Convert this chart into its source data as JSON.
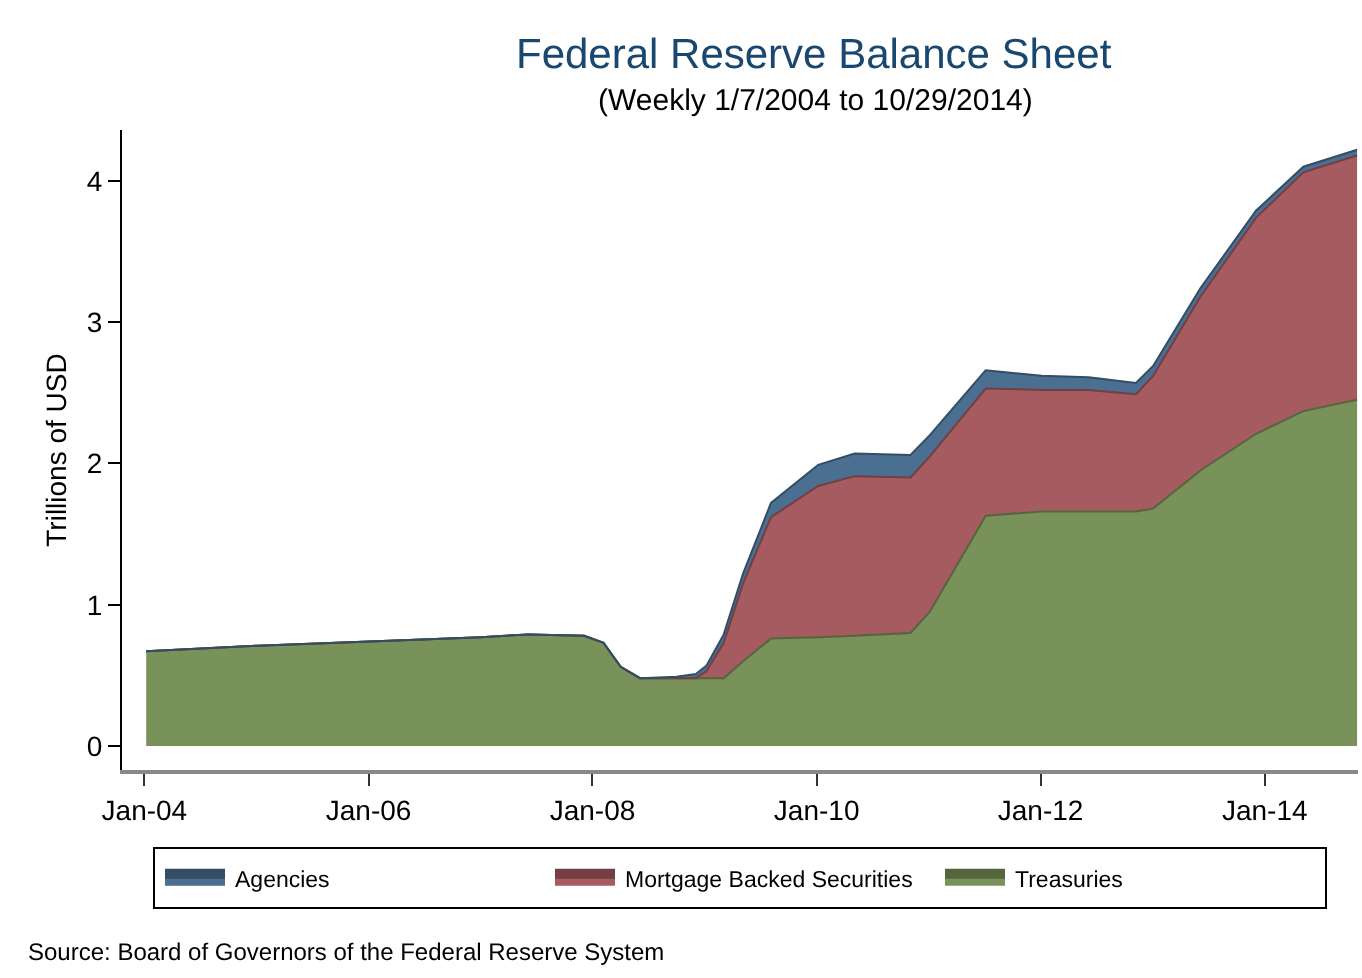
{
  "chart_data": {
    "type": "area",
    "stacked": true,
    "title": "Federal Reserve Balance Sheet",
    "subtitle": "(Weekly 1/7/2004 to 10/29/2014)",
    "ylabel": "Trillions of USD",
    "x": [
      "2004-01-07",
      "2005-01-05",
      "2006-01-04",
      "2007-01-03",
      "2007-06-06",
      "2007-12-05",
      "2008-02-06",
      "2008-04-02",
      "2008-06-04",
      "2008-10-01",
      "2008-12-03",
      "2009-01-07",
      "2009-03-04",
      "2009-05-06",
      "2009-08-05",
      "2010-01-06",
      "2010-05-05",
      "2010-11-03",
      "2011-01-05",
      "2011-07-06",
      "2012-01-04",
      "2012-06-06",
      "2012-11-07",
      "2013-01-02",
      "2013-06-05",
      "2013-12-04",
      "2014-05-07",
      "2014-10-29"
    ],
    "series": [
      {
        "name": "Treasuries",
        "color": "#78925a",
        "values": [
          0.67,
          0.71,
          0.74,
          0.77,
          0.79,
          0.78,
          0.73,
          0.56,
          0.48,
          0.48,
          0.48,
          0.48,
          0.48,
          0.6,
          0.76,
          0.77,
          0.78,
          0.8,
          0.95,
          1.63,
          1.66,
          1.66,
          1.66,
          1.68,
          1.95,
          2.21,
          2.37,
          2.45
        ]
      },
      {
        "name": "Mortgage Backed Securities",
        "color": "#a55b5f",
        "values": [
          0,
          0,
          0,
          0,
          0,
          0,
          0,
          0,
          0,
          0,
          0,
          0.05,
          0.25,
          0.55,
          0.86,
          1.07,
          1.13,
          1.1,
          1.1,
          0.9,
          0.86,
          0.86,
          0.83,
          0.94,
          1.23,
          1.53,
          1.69,
          1.73
        ]
      },
      {
        "name": "Agencies",
        "color": "#4a6f91",
        "values": [
          0,
          0,
          0,
          0,
          0,
          0,
          0,
          0,
          0,
          0.01,
          0.03,
          0.04,
          0.06,
          0.07,
          0.1,
          0.15,
          0.16,
          0.16,
          0.15,
          0.13,
          0.1,
          0.09,
          0.08,
          0.07,
          0.06,
          0.05,
          0.04,
          0.04
        ]
      }
    ],
    "xlim": [
      "2003-10-20",
      "2014-11-01"
    ],
    "xticks": [
      {
        "value": "2004-01-01",
        "label": "Jan-04"
      },
      {
        "value": "2006-01-01",
        "label": "Jan-06"
      },
      {
        "value": "2008-01-01",
        "label": "Jan-08"
      },
      {
        "value": "2010-01-01",
        "label": "Jan-10"
      },
      {
        "value": "2012-01-01",
        "label": "Jan-12"
      },
      {
        "value": "2014-01-01",
        "label": "Jan-14"
      }
    ],
    "ylim": [
      -0.17,
      4.36
    ],
    "yticks": [
      0,
      1,
      2,
      3,
      4
    ],
    "legend": "bottom",
    "annotations": [
      "Source: Board of Governors of the Federal Reserve System"
    ]
  }
}
